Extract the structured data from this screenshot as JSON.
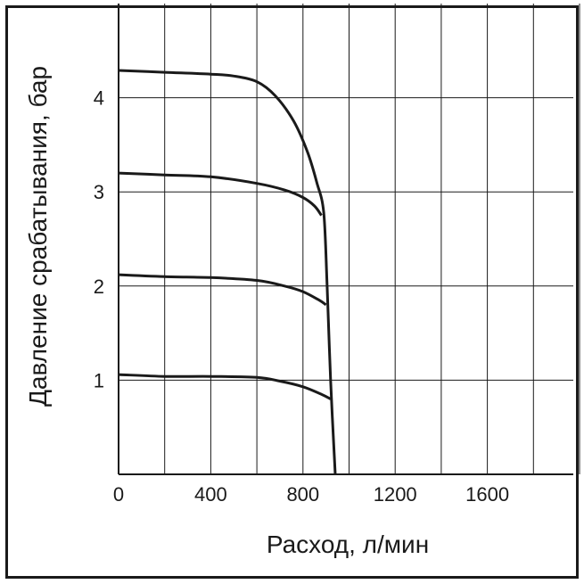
{
  "chart_data": {
    "type": "line",
    "xlabel": "Расход, л/мин",
    "ylabel": "Давление срабатывания, бар",
    "xlim": [
      0,
      2000
    ],
    "ylim": [
      0,
      5
    ],
    "x_ticks": [
      0,
      400,
      800,
      1200,
      1600
    ],
    "x_tick_labels": [
      "0",
      "400",
      "800",
      "1200",
      "1600"
    ],
    "y_ticks": [
      1,
      2,
      3,
      4
    ],
    "y_tick_labels": [
      "1",
      "2",
      "3",
      "4"
    ],
    "x_grid_step": 200,
    "y_grid_step": 1,
    "grid": true,
    "line_color": "#1a1a1a",
    "grid_color": "#1a1a1a",
    "series": [
      {
        "points": [
          [
            0,
            4.29
          ],
          [
            200,
            4.27
          ],
          [
            400,
            4.25
          ],
          [
            500,
            4.23
          ],
          [
            600,
            4.17
          ],
          [
            680,
            4.02
          ],
          [
            760,
            3.75
          ],
          [
            820,
            3.42
          ],
          [
            860,
            3.1
          ],
          [
            890,
            2.78
          ],
          [
            905,
            2.0
          ],
          [
            920,
            1.0
          ],
          [
            940,
            0.0
          ]
        ]
      },
      {
        "points": [
          [
            0,
            3.2
          ],
          [
            200,
            3.18
          ],
          [
            400,
            3.16
          ],
          [
            600,
            3.09
          ],
          [
            720,
            3.02
          ],
          [
            800,
            2.94
          ],
          [
            850,
            2.85
          ],
          [
            880,
            2.75
          ]
        ]
      },
      {
        "points": [
          [
            0,
            2.12
          ],
          [
            200,
            2.1
          ],
          [
            400,
            2.09
          ],
          [
            600,
            2.06
          ],
          [
            720,
            2.0
          ],
          [
            800,
            1.94
          ],
          [
            870,
            1.85
          ],
          [
            900,
            1.8
          ]
        ]
      },
      {
        "points": [
          [
            0,
            1.06
          ],
          [
            200,
            1.04
          ],
          [
            400,
            1.04
          ],
          [
            600,
            1.03
          ],
          [
            700,
            0.99
          ],
          [
            800,
            0.93
          ],
          [
            880,
            0.85
          ],
          [
            920,
            0.8
          ]
        ]
      }
    ]
  }
}
